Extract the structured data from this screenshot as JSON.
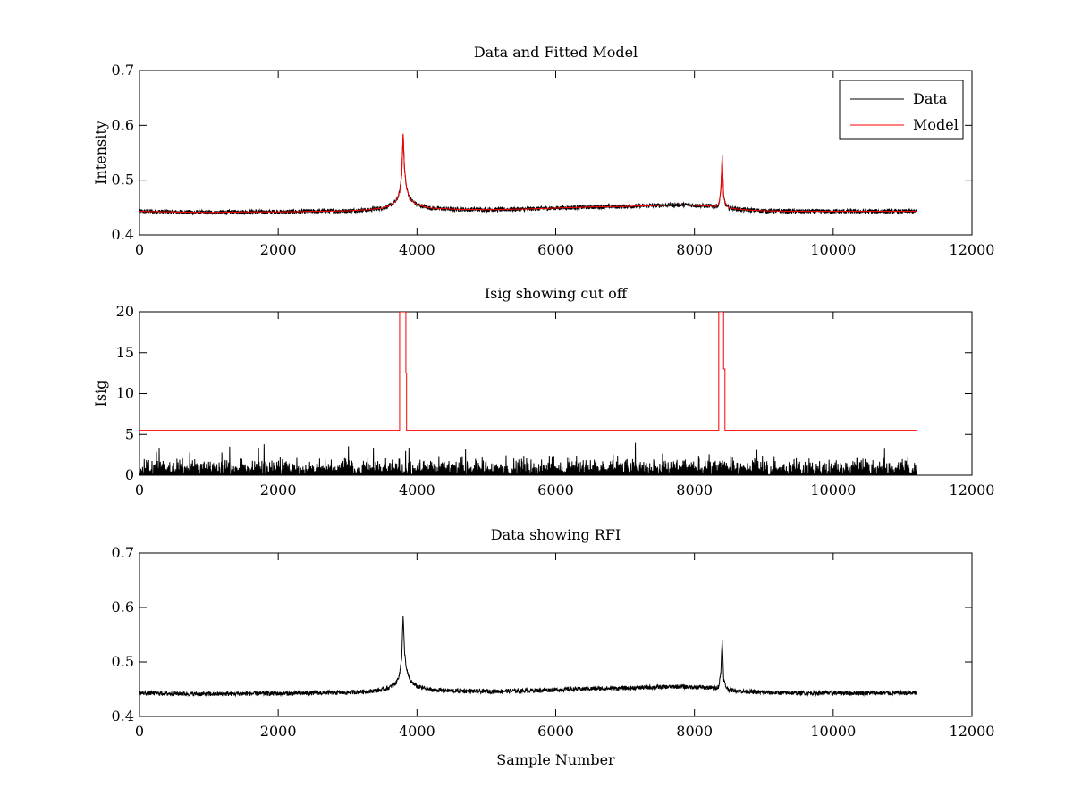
{
  "figure_colors": {
    "data": "#000000",
    "model": "#ff0000",
    "background": "#ffffff"
  },
  "chart_data": [
    {
      "type": "line",
      "title": "Data and Fitted Model",
      "xlabel": "",
      "ylabel": "Intensity",
      "xlim": [
        0,
        12000
      ],
      "ylim": [
        0.4,
        0.7
      ],
      "xticks": [
        0,
        2000,
        4000,
        6000,
        8000,
        10000,
        12000
      ],
      "yticks": [
        0.4,
        0.5,
        0.6,
        0.7
      ],
      "grid": false,
      "legend": {
        "placement": "top-right",
        "entries": [
          "Data",
          "Model"
        ]
      },
      "series": [
        {
          "name": "Data",
          "color": "#000000",
          "style": "noisy",
          "noise_amplitude": 0.004,
          "x": [
            0,
            500,
            1000,
            1500,
            2000,
            2500,
            3000,
            3300,
            3500,
            3600,
            3700,
            3750,
            3780,
            3800,
            3820,
            3850,
            3900,
            4000,
            4200,
            4500,
            5000,
            5500,
            6000,
            6500,
            7000,
            7500,
            7800,
            8000,
            8200,
            8300,
            8350,
            8380,
            8400,
            8420,
            8450,
            8500,
            8700,
            9000,
            9500,
            10000,
            10500,
            11000,
            11200
          ],
          "y": [
            0.443,
            0.442,
            0.441,
            0.442,
            0.442,
            0.443,
            0.444,
            0.446,
            0.449,
            0.453,
            0.462,
            0.478,
            0.51,
            0.585,
            0.52,
            0.485,
            0.466,
            0.455,
            0.449,
            0.447,
            0.446,
            0.447,
            0.449,
            0.451,
            0.452,
            0.454,
            0.455,
            0.454,
            0.453,
            0.452,
            0.455,
            0.48,
            0.545,
            0.47,
            0.455,
            0.449,
            0.446,
            0.444,
            0.443,
            0.443,
            0.443,
            0.443,
            0.443
          ]
        },
        {
          "name": "Model",
          "color": "#ff0000",
          "style": "smooth",
          "x": [
            0,
            500,
            1000,
            1500,
            2000,
            2500,
            3000,
            3300,
            3500,
            3600,
            3700,
            3750,
            3780,
            3800,
            3820,
            3850,
            3900,
            4000,
            4200,
            4500,
            5000,
            5500,
            6000,
            6500,
            7000,
            7500,
            7800,
            8000,
            8200,
            8300,
            8350,
            8380,
            8400,
            8420,
            8450,
            8500,
            8700,
            9000,
            9500,
            10000,
            10500,
            11000,
            11200
          ],
          "y": [
            0.443,
            0.442,
            0.441,
            0.442,
            0.442,
            0.443,
            0.444,
            0.446,
            0.449,
            0.453,
            0.462,
            0.478,
            0.51,
            0.585,
            0.52,
            0.485,
            0.466,
            0.455,
            0.449,
            0.447,
            0.446,
            0.447,
            0.449,
            0.451,
            0.452,
            0.454,
            0.455,
            0.454,
            0.453,
            0.452,
            0.455,
            0.48,
            0.545,
            0.47,
            0.455,
            0.449,
            0.446,
            0.444,
            0.443,
            0.443,
            0.443,
            0.443,
            0.443
          ]
        }
      ]
    },
    {
      "type": "line",
      "title": "Isig showing cut off",
      "xlabel": "",
      "ylabel": "Isig",
      "xlim": [
        0,
        12000
      ],
      "ylim": [
        0,
        20
      ],
      "xticks": [
        0,
        2000,
        4000,
        6000,
        8000,
        10000,
        12000
      ],
      "yticks": [
        0,
        5,
        10,
        15,
        20
      ],
      "grid": false,
      "series": [
        {
          "name": "Isig",
          "color": "#000000",
          "style": "spiky",
          "x_range": [
            0,
            11200
          ],
          "typical_max": 2.5,
          "peak_max": 4.0
        },
        {
          "name": "Cut off",
          "color": "#ff0000",
          "style": "step",
          "x": [
            0,
            3750,
            3750,
            3770,
            3830,
            3840,
            3840,
            3850,
            3850,
            8350,
            8350,
            8370,
            8410,
            8420,
            8420,
            8440,
            8440,
            11200
          ],
          "y": [
            5.5,
            5.5,
            20,
            20,
            20,
            20,
            12.5,
            12.5,
            5.5,
            5.5,
            20,
            20,
            20,
            20,
            13,
            13,
            5.5,
            5.5
          ]
        }
      ]
    },
    {
      "type": "line",
      "title": "Data showing RFI",
      "xlabel": "Sample Number",
      "ylabel": "",
      "xlim": [
        0,
        12000
      ],
      "ylim": [
        0.4,
        0.7
      ],
      "xticks": [
        0,
        2000,
        4000,
        6000,
        8000,
        10000,
        12000
      ],
      "yticks": [
        0.4,
        0.5,
        0.6,
        0.7
      ],
      "grid": false,
      "series": [
        {
          "name": "Data",
          "color": "#000000",
          "style": "noisy",
          "noise_amplitude": 0.004,
          "x": [
            0,
            500,
            1000,
            1500,
            2000,
            2500,
            3000,
            3300,
            3500,
            3600,
            3700,
            3750,
            3780,
            3800,
            3820,
            3850,
            3900,
            4000,
            4200,
            4500,
            5000,
            5500,
            6000,
            6500,
            7000,
            7500,
            7800,
            8000,
            8200,
            8300,
            8350,
            8380,
            8400,
            8420,
            8450,
            8500,
            8700,
            9000,
            9500,
            10000,
            10500,
            11000,
            11200
          ],
          "y": [
            0.443,
            0.442,
            0.441,
            0.442,
            0.442,
            0.443,
            0.444,
            0.446,
            0.449,
            0.453,
            0.462,
            0.478,
            0.51,
            0.585,
            0.52,
            0.485,
            0.466,
            0.455,
            0.449,
            0.447,
            0.446,
            0.447,
            0.449,
            0.451,
            0.452,
            0.454,
            0.455,
            0.454,
            0.453,
            0.452,
            0.455,
            0.48,
            0.545,
            0.47,
            0.455,
            0.449,
            0.446,
            0.444,
            0.443,
            0.443,
            0.443,
            0.443,
            0.443
          ]
        }
      ]
    }
  ]
}
